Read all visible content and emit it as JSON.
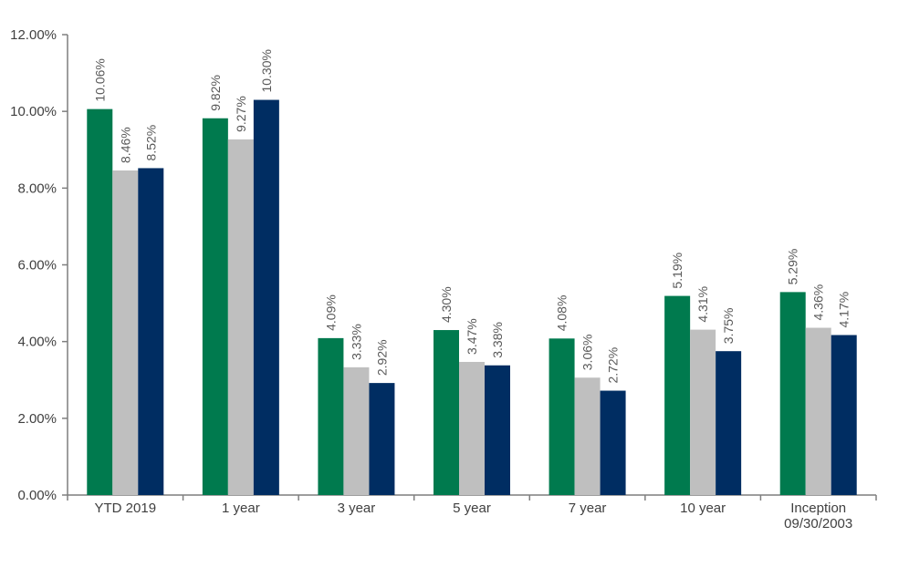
{
  "chart_data": {
    "type": "bar",
    "categories": [
      [
        "YTD 2019"
      ],
      [
        "1 year"
      ],
      [
        "3 year"
      ],
      [
        "5 year"
      ],
      [
        "7 year"
      ],
      [
        "10 year"
      ],
      [
        "Inception",
        "09/30/2003"
      ]
    ],
    "series": [
      {
        "color": "#007A4E",
        "values": [
          10.06,
          9.82,
          4.09,
          4.3,
          4.08,
          5.19,
          5.29
        ]
      },
      {
        "color": "#BFBFBF",
        "values": [
          8.46,
          9.27,
          3.33,
          3.47,
          3.06,
          4.31,
          4.36
        ]
      },
      {
        "color": "#002D62",
        "values": [
          8.52,
          10.3,
          2.92,
          3.38,
          2.72,
          3.75,
          4.17
        ]
      }
    ],
    "ylim": [
      0,
      12
    ],
    "yticks": [
      0,
      2,
      4,
      6,
      8,
      10,
      12
    ],
    "ytick_labels": [
      "0.00%",
      "2.00%",
      "4.00%",
      "6.00%",
      "8.00%",
      "10.00%",
      "12.00%"
    ],
    "data_labels": [
      [
        "10.06%",
        "9.82%",
        "4.09%",
        "4.30%",
        "4.08%",
        "5.19%",
        "5.29%"
      ],
      [
        "8.46%",
        "9.27%",
        "3.33%",
        "3.47%",
        "3.06%",
        "4.31%",
        "4.36%"
      ],
      [
        "8.52%",
        "10.30%",
        "2.92%",
        "3.38%",
        "2.72%",
        "3.75%",
        "4.17%"
      ]
    ],
    "grid": false,
    "legend": "none",
    "title": "",
    "xlabel": "",
    "ylabel": ""
  }
}
